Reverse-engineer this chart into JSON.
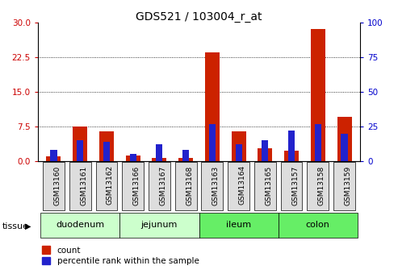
{
  "title": "GDS521 / 103004_r_at",
  "samples": [
    "GSM13160",
    "GSM13161",
    "GSM13162",
    "GSM13166",
    "GSM13167",
    "GSM13168",
    "GSM13163",
    "GSM13164",
    "GSM13165",
    "GSM13157",
    "GSM13158",
    "GSM13159"
  ],
  "count_values": [
    1.0,
    7.5,
    6.5,
    1.2,
    0.8,
    0.7,
    23.5,
    6.5,
    2.8,
    2.2,
    28.5,
    9.5
  ],
  "percentile_values": [
    8,
    15,
    14,
    5,
    12,
    8,
    27,
    12,
    15,
    22,
    27,
    20
  ],
  "tissues": [
    {
      "label": "duodenum",
      "start": 0,
      "end": 3
    },
    {
      "label": "jejunum",
      "start": 3,
      "end": 6
    },
    {
      "label": "ileum",
      "start": 6,
      "end": 9
    },
    {
      "label": "colon",
      "start": 9,
      "end": 12
    }
  ],
  "tissue_colors": [
    "#ccffcc",
    "#ccffcc",
    "#66ee66",
    "#66ee66"
  ],
  "bar_width": 0.55,
  "percentile_bar_width": 0.25,
  "left_ylim": [
    0,
    30
  ],
  "right_ylim": [
    0,
    100
  ],
  "left_yticks": [
    0,
    7.5,
    15,
    22.5,
    30
  ],
  "right_yticks": [
    0,
    25,
    50,
    75,
    100
  ],
  "left_ylabel_color": "#cc0000",
  "right_ylabel_color": "#0000cc",
  "count_color": "#cc2200",
  "percentile_color": "#2222cc",
  "bg_plot": "#ffffff",
  "grid_color": "#000000",
  "xlabel_fontsize": 6.5,
  "title_fontsize": 10,
  "sample_box_color": "#dddddd"
}
